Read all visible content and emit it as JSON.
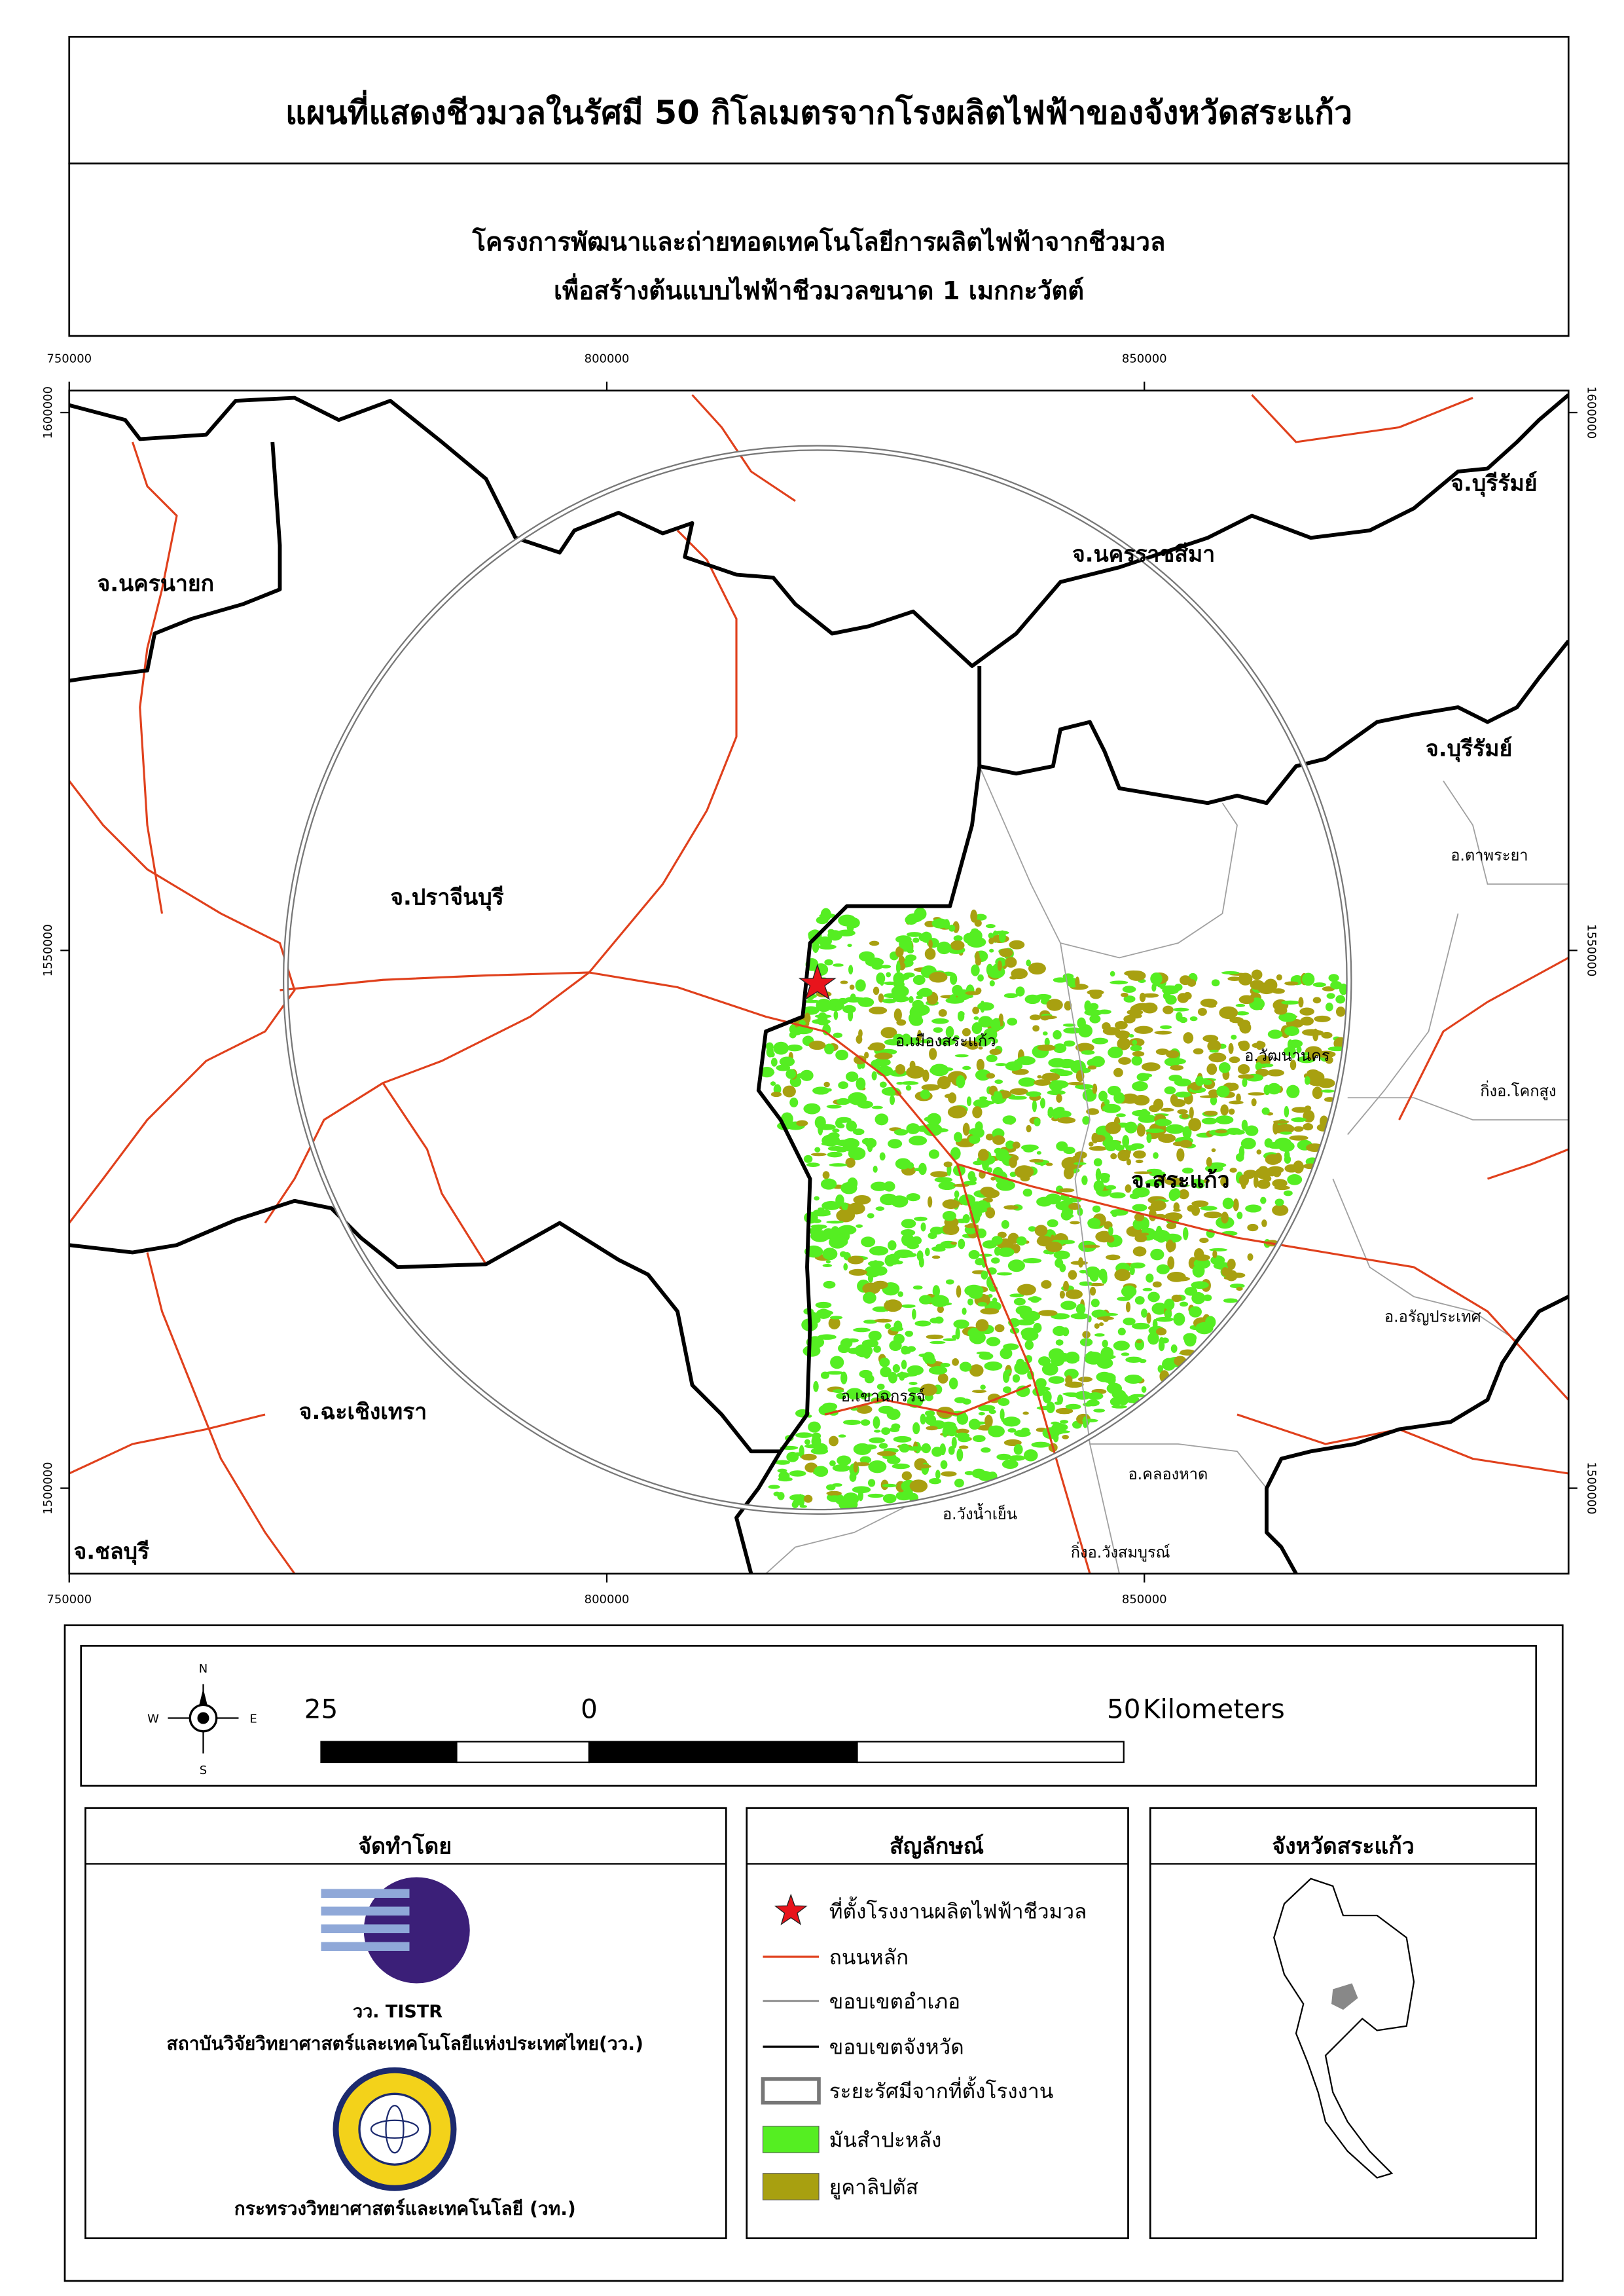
{
  "header": {
    "title": "แผนที่แสดงชีวมวลในรัศมี 50 กิโลเมตรจากโรงผลิตไฟฟ้าของจังหวัดสระแก้ว",
    "subtitle_lines": [
      "โครงการพัฒนาและถ่ายทอดเทคโนโลยีการผลิตไฟฟ้าจากชีวมวล",
      "เพื่อสร้างต้นแบบไฟฟ้าชีวมวลขนาด 1 เมกกะวัตต์"
    ]
  },
  "map": {
    "x_ticks": [
      750000,
      800000,
      850000
    ],
    "y_ticks": [
      1600000,
      1550000,
      1500000
    ],
    "labels": [
      "จ.บุรีรัมย์",
      "จ.นครราชสีมา",
      "จ.นครนายก",
      "จ.บุรีรัมย์",
      "อ.ตาพระยา",
      "จ.ปราจีนบุรี",
      "อ.เมืองสระแก้ว",
      "อ.วัฒนานคร",
      "กิ่งอ.โคกสูง",
      "จ.สระแก้ว",
      "อ.อรัญประเทศ",
      "อ.เขาฉกรรจ์",
      "จ.ฉะเชิงเทรา",
      "อ.คลองหาด",
      "อ.วังน้ำเย็น",
      "จ.ชลบุรี",
      "กิ่งอ.วังสมบูรณ์"
    ]
  },
  "scale_bar": {
    "labels": [
      25,
      0,
      50
    ],
    "unit": "Kilometers"
  },
  "compass": {
    "north": "N",
    "south": "S",
    "east": "E",
    "west": "W"
  },
  "producer": {
    "title": "จัดทำโดย",
    "logo_text": "วว. TISTR",
    "institute": "สถาบันวิจัยวิทยาศาสตร์และเทคโนโลยีแห่งประเทศไทย(วว.)",
    "ministry": "กระทรวงวิทยาศาสตร์และเทคโนโลยี (วท.)"
  },
  "legend": {
    "title": "สัญลักษณ์",
    "items": [
      {
        "label": "ที่ตั้งโรงงานผลิตไฟฟ้าชีวมวล",
        "symbol": "star",
        "color": "#e8141c"
      },
      {
        "label": "ถนนหลัก",
        "symbol": "line",
        "color": "#e0401c"
      },
      {
        "label": "ขอบเขตอำเภอ",
        "symbol": "line",
        "color": "#9a9a9a"
      },
      {
        "label": "ขอบเขตจังหวัด",
        "symbol": "line",
        "color": "#000000"
      },
      {
        "label": "ระยะรัศมีจากที่ตั้งโรงงาน",
        "symbol": "ring",
        "color": "#ffffff"
      },
      {
        "label": "มันสำปะหลัง",
        "symbol": "fill",
        "color": "#55ee22"
      },
      {
        "label": "ยูคาลิปตัส",
        "symbol": "fill",
        "color": "#a8a010"
      }
    ]
  },
  "inset": {
    "title": "จังหวัดสระแก้ว"
  }
}
